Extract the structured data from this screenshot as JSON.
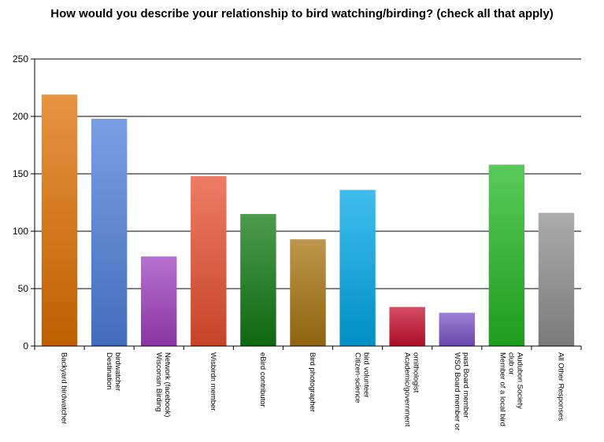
{
  "chart_data": {
    "type": "bar",
    "title": "How would you describe your relationship to bird watching/birding? (check all that apply)",
    "xlabel": "",
    "ylabel": "",
    "ylim": [
      0,
      250
    ],
    "yticks": [
      0,
      50,
      100,
      150,
      200,
      250
    ],
    "grid": true,
    "legend": "none",
    "categories": [
      [
        "Backyard birdwatcher"
      ],
      [
        "Destination",
        "birdwatcher"
      ],
      [
        "Wisconsin Birding",
        "Network (facebook)"
      ],
      [
        "Wisbirdn member"
      ],
      [
        "eBird contributor"
      ],
      [
        "Bird photographer"
      ],
      [
        "Citizen-science",
        "bird volunteer"
      ],
      [
        "Academic/government",
        "ornithologist"
      ],
      [
        "WSO Board member or",
        "past Board member"
      ],
      [
        "Member of a local bird",
        "club or",
        "Audubon Society"
      ],
      [
        "All Other Responses"
      ]
    ],
    "values": [
      219,
      198,
      78,
      148,
      115,
      93,
      136,
      34,
      29,
      158,
      116
    ],
    "colors": [
      "#e07000",
      "#4f7fdc",
      "#a040c0",
      "#e85030",
      "#117a11",
      "#a87410",
      "#00a8e8",
      "#c8102e",
      "#7b55c8",
      "#22b822",
      "#909090"
    ]
  }
}
